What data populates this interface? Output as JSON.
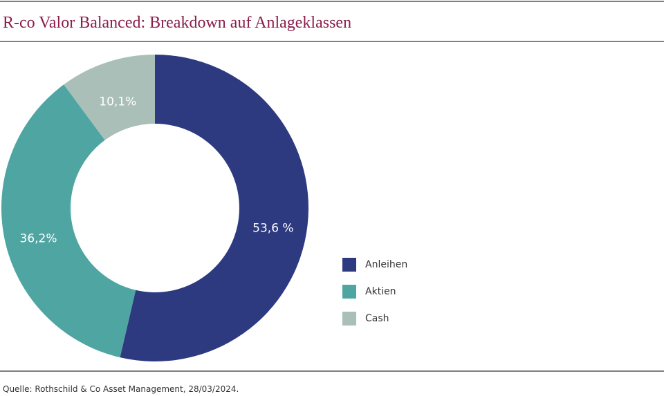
{
  "chart_data": {
    "type": "donut",
    "title": "R-co Valor Balanced: Breakdown auf Anlageklassen",
    "categories": [
      "Anleihen",
      "Aktien",
      "Cash"
    ],
    "values": [
      53.6,
      36.2,
      10.1
    ],
    "value_labels": [
      "53,6 %",
      "36,2%",
      "10,1%"
    ],
    "colors": [
      "#2d3a80",
      "#4fa5a1",
      "#aabfb8"
    ],
    "legend": "right",
    "source": "Quelle: Rothschild & Co Asset Management, 28/03/2024."
  }
}
